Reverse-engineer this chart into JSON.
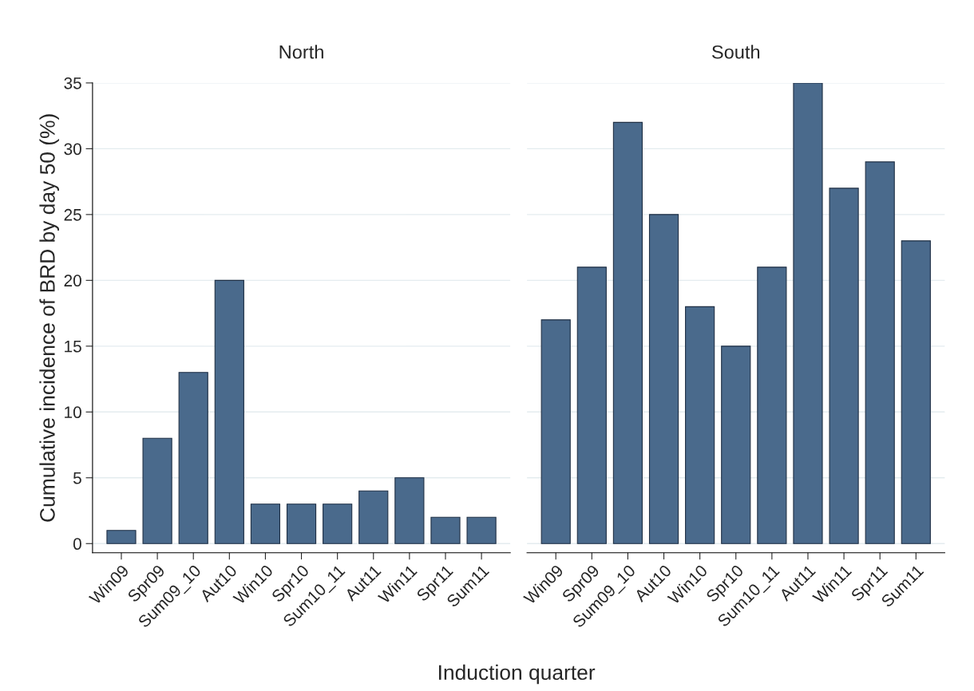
{
  "chart_data": [
    {
      "type": "bar",
      "title": "North",
      "ylabel": "Cumulative incidence of BRD by day 50 (%)",
      "xlabel": "Induction quarter",
      "categories": [
        "Win09",
        "Spr09",
        "Sum09_10",
        "Aut10",
        "Win10",
        "Spr10",
        "Sum10_11",
        "Aut11",
        "Win11",
        "Spr11",
        "Sum11"
      ],
      "series": [
        {
          "color": "#4a6a8c",
          "values": [
            1,
            8,
            13,
            20,
            3,
            3,
            3,
            4,
            5,
            2,
            2
          ]
        }
      ],
      "ylim": [
        -0.7,
        35
      ],
      "yticks": [
        0,
        5,
        10,
        15,
        20,
        25,
        30,
        35
      ],
      "grid": "y"
    },
    {
      "type": "bar",
      "title": "South",
      "categories": [
        "Win09",
        "Spr09",
        "Sum09_10",
        "Aut10",
        "Win10",
        "Spr10",
        "Sum10_11",
        "Aut11",
        "Win11",
        "Spr11",
        "Sum11"
      ],
      "series": [
        {
          "color": "#4a6a8c",
          "values": [
            17,
            21,
            32,
            25,
            18,
            15,
            21,
            35,
            27,
            29,
            23
          ]
        }
      ],
      "ylim": [
        -0.7,
        35
      ],
      "yticks": [
        0,
        5,
        10,
        15,
        20,
        25,
        30,
        35
      ],
      "grid": "y",
      "tick_labels": "x"
    }
  ]
}
